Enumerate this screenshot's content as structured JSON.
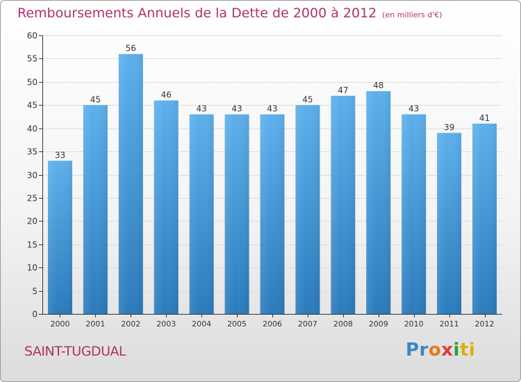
{
  "title": {
    "main": "Remboursements Annuels de la Dette de 2000 à 2012",
    "unit": "(en milliers d'€)"
  },
  "town": "SAINT-TUGDUAL",
  "logo": {
    "text": "Proxiti",
    "letters": [
      "Pr",
      "o",
      "x",
      "i",
      "ti"
    ]
  },
  "colors": {
    "title": "#b0306a",
    "bar_top": "#5db0ec",
    "bar_bottom": "#2b7bbc",
    "axis": "#333333"
  },
  "chart_data": {
    "type": "bar",
    "categories": [
      "2000",
      "2001",
      "2002",
      "2003",
      "2004",
      "2005",
      "2006",
      "2007",
      "2008",
      "2009",
      "2010",
      "2011",
      "2012"
    ],
    "values": [
      33,
      45,
      56,
      46,
      43,
      43,
      43,
      45,
      47,
      48,
      43,
      39,
      41
    ],
    "ylim": [
      0,
      60
    ],
    "yticks": [
      0,
      5,
      10,
      15,
      20,
      25,
      30,
      35,
      40,
      45,
      50,
      55,
      60
    ],
    "grid": true,
    "xlabel": "",
    "ylabel": ""
  }
}
